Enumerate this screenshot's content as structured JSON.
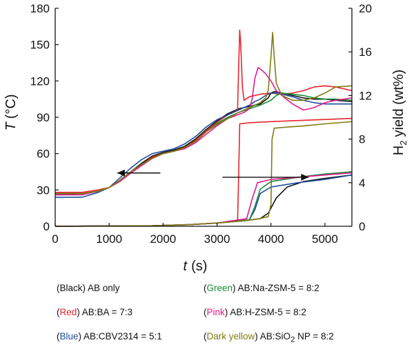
{
  "chart_data": {
    "type": "line",
    "x_label": "t",
    "x_unit": "(s)",
    "y_left_label": "T",
    "y_left_unit": "(°C)",
    "y_right_label": "H",
    "y_right_subscript": "2",
    "y_right_unit": "yield (wt%)",
    "xlim": [
      0,
      5500
    ],
    "ylim_left": [
      0,
      180
    ],
    "ylim_right": [
      0,
      20
    ],
    "x_ticks": [
      "0",
      "1000",
      "2000",
      "3000",
      "4000",
      "5000"
    ],
    "y_left_ticks": [
      "0",
      "30",
      "60",
      "90",
      "120",
      "150",
      "180"
    ],
    "y_right_ticks": [
      "0",
      "4",
      "8",
      "12",
      "16",
      "20"
    ],
    "arrows": [
      {
        "from": [
          1950,
          44
        ],
        "to": [
          1150,
          44
        ],
        "axis": "left"
      },
      {
        "from": [
          3100,
          4.5
        ],
        "to": [
          4700,
          4.5
        ],
        "axis": "right"
      }
    ],
    "temperature_series": [
      {
        "color": "#111111",
        "x": [
          0,
          500,
          800,
          1000,
          1200,
          1400,
          1600,
          1800,
          2000,
          2200,
          2400,
          2600,
          2800,
          3000,
          3200,
          3400,
          3600,
          3800,
          3950,
          4000,
          4050,
          4100,
          4200,
          4400,
          4600,
          4800,
          5000,
          5200,
          5500
        ],
        "y": [
          26,
          27,
          29,
          32,
          38,
          45,
          52,
          58,
          61,
          63,
          66,
          72,
          80,
          87,
          93,
          97,
          99,
          101,
          106,
          110,
          111,
          111,
          110,
          108,
          106,
          105,
          105,
          104,
          103
        ]
      },
      {
        "color": "#e8232a",
        "x": [
          0,
          500,
          800,
          1000,
          1200,
          1400,
          1600,
          1800,
          2000,
          2200,
          2400,
          2600,
          2800,
          3000,
          3200,
          3380,
          3400,
          3420,
          3440,
          3470,
          3500,
          3600,
          3800,
          4000,
          4200,
          4400,
          4600,
          4800,
          5000,
          5200,
          5500
        ],
        "y": [
          28,
          28,
          30,
          32,
          37,
          44,
          51,
          57,
          60,
          62,
          65,
          71,
          79,
          86,
          92,
          96,
          130,
          162,
          150,
          115,
          104,
          107,
          109,
          110,
          109,
          110,
          112,
          115,
          116,
          115,
          112
        ]
      },
      {
        "color": "#1f4e9c",
        "x": [
          0,
          500,
          800,
          1000,
          1200,
          1400,
          1600,
          1800,
          2000,
          2200,
          2400,
          2600,
          2800,
          3000,
          3200,
          3400,
          3600,
          3700,
          3800,
          3900,
          4000,
          4100,
          4200,
          4400,
          4600,
          4800,
          5000,
          5200,
          5500
        ],
        "y": [
          24,
          24,
          28,
          32,
          40,
          48,
          55,
          60,
          62,
          64,
          68,
          74,
          82,
          88,
          92,
          96,
          100,
          103,
          105,
          108,
          110,
          110,
          109,
          107,
          104,
          102,
          101,
          101,
          101
        ]
      },
      {
        "color": "#1b8a3a",
        "x": [
          0,
          500,
          800,
          1000,
          1200,
          1400,
          1600,
          1800,
          2000,
          2200,
          2400,
          2600,
          2800,
          3000,
          3200,
          3400,
          3600,
          3800,
          4000,
          4100,
          4200,
          4400,
          4600,
          4800,
          5000,
          5200,
          5500
        ],
        "y": [
          27,
          27,
          29,
          32,
          38,
          45,
          51,
          56,
          60,
          62,
          65,
          70,
          78,
          85,
          90,
          94,
          97,
          100,
          104,
          108,
          110,
          109,
          108,
          106,
          105,
          105,
          104
        ]
      },
      {
        "color": "#e0198c",
        "x": [
          0,
          500,
          800,
          1000,
          1200,
          1400,
          1600,
          1800,
          2000,
          2200,
          2400,
          2600,
          2800,
          3000,
          3200,
          3500,
          3600,
          3650,
          3700,
          3760,
          3800,
          3900,
          4000,
          4100,
          4200,
          4400,
          4600,
          4800,
          5000,
          5200,
          5500
        ],
        "y": [
          26,
          26,
          29,
          32,
          37,
          44,
          50,
          56,
          60,
          62,
          64,
          69,
          76,
          83,
          89,
          94,
          97,
          105,
          122,
          131,
          130,
          126,
          120,
          112,
          108,
          101,
          96,
          98,
          102,
          104,
          106
        ]
      },
      {
        "color": "#7f7a12",
        "x": [
          0,
          500,
          800,
          1000,
          1200,
          1400,
          1600,
          1800,
          2000,
          2200,
          2400,
          2600,
          2800,
          3000,
          3200,
          3400,
          3600,
          3800,
          3900,
          3950,
          4000,
          4030,
          4060,
          4100,
          4200,
          4400,
          4600,
          4800,
          5000,
          5200,
          5500
        ],
        "y": [
          27,
          27,
          29,
          32,
          38,
          45,
          51,
          56,
          60,
          62,
          65,
          70,
          78,
          84,
          89,
          94,
          98,
          102,
          106,
          112,
          140,
          160,
          140,
          118,
          108,
          104,
          104,
          106,
          110,
          115,
          116
        ]
      }
    ],
    "yield_series": [
      {
        "color": "#111111",
        "x": [
          0,
          1800,
          2500,
          3000,
          3500,
          3800,
          3950,
          4100,
          4300,
          4600,
          5000,
          5500
        ],
        "y": [
          0,
          0.05,
          0.15,
          0.3,
          0.5,
          0.7,
          1.2,
          2.6,
          3.6,
          4.1,
          4.4,
          4.7
        ]
      },
      {
        "color": "#e8232a",
        "x": [
          0,
          1800,
          2500,
          3000,
          3380,
          3400,
          3420,
          3600,
          4000,
          4500,
          5000,
          5500
        ],
        "y": [
          0,
          0.05,
          0.15,
          0.3,
          0.5,
          4.5,
          9.4,
          9.5,
          9.6,
          9.7,
          9.8,
          9.9
        ]
      },
      {
        "color": "#1f4e9c",
        "x": [
          0,
          1800,
          2500,
          3000,
          3600,
          3700,
          3800,
          4000,
          4500,
          5000,
          5500
        ],
        "y": [
          0,
          0.05,
          0.15,
          0.3,
          0.6,
          1.5,
          3.0,
          3.6,
          4.0,
          4.3,
          4.7
        ]
      },
      {
        "color": "#1b8a3a",
        "x": [
          0,
          1800,
          2500,
          3000,
          3600,
          3700,
          3800,
          4000,
          4500,
          5000,
          5500
        ],
        "y": [
          0,
          0.05,
          0.15,
          0.3,
          0.6,
          1.8,
          3.4,
          4.1,
          4.5,
          4.8,
          5.0
        ]
      },
      {
        "color": "#e0198c",
        "x": [
          0,
          1800,
          2500,
          3000,
          3550,
          3650,
          3750,
          4000,
          4500,
          5000,
          5500
        ],
        "y": [
          0,
          0.05,
          0.15,
          0.3,
          0.7,
          2.5,
          4.0,
          4.3,
          4.5,
          4.7,
          4.9
        ]
      },
      {
        "color": "#7f7a12",
        "x": [
          0,
          1800,
          2500,
          3000,
          3500,
          3800,
          3950,
          4000,
          4020,
          4060,
          4300,
          4600,
          5000,
          5500
        ],
        "y": [
          0,
          0.05,
          0.15,
          0.3,
          0.5,
          0.7,
          0.9,
          2.0,
          8.0,
          9.0,
          9.1,
          9.2,
          9.4,
          9.6
        ]
      }
    ]
  },
  "legend": [
    {
      "color_name": "Black",
      "color": "#111111",
      "text": "AB only"
    },
    {
      "color_name": "Green",
      "color": "#1b8a3a",
      "text": "AB:Na-ZSM-5 = 8:2"
    },
    {
      "color_name": "Red",
      "color": "#e8232a",
      "text": "AB:BA = 7:3"
    },
    {
      "color_name": "Pink",
      "color": "#e0198c",
      "text": "AB:H-ZSM-5 = 8:2"
    },
    {
      "color_name": "Blue",
      "color": "#1f4e9c",
      "text": "AB:CBV2314 = 5:1"
    },
    {
      "color_name": "Dark yellow",
      "color": "#7f7a12",
      "text_pre": "AB:SiO",
      "text_sub": "2",
      "text_post": " NP = 8:2"
    }
  ]
}
